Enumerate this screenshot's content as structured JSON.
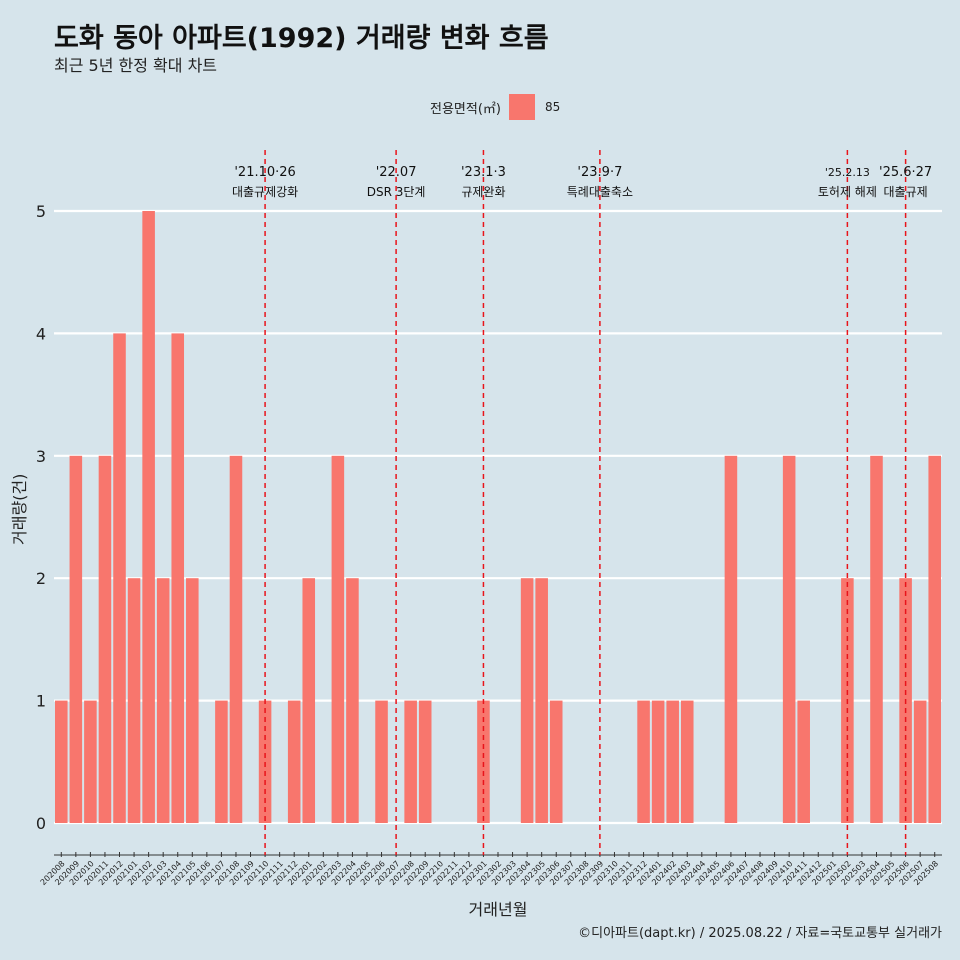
{
  "header": {
    "title": "도화 동아 아파트(1992) 거래량 변화 흐름",
    "subtitle": "최근 5년 한정 확대 차트"
  },
  "legend": {
    "title": "전용면적(㎡)",
    "items": [
      {
        "label": "85",
        "color": "#f8766d"
      }
    ]
  },
  "caption": "©디아파트(dapt.kr) / 2025.08.22 / 자료=국토교통부 실거래가",
  "chart_data": {
    "type": "bar",
    "title": "도화 동아 아파트(1992) 거래량 변화 흐름",
    "subtitle": "최근 5년 한정 확대 차트",
    "xlabel": "거래년월",
    "ylabel": "거래량(건)",
    "ylim": [
      0,
      5
    ],
    "yticks": [
      0,
      1,
      2,
      3,
      4,
      5
    ],
    "grid": true,
    "legend_position": "top",
    "categories": [
      "202008",
      "202009",
      "202010",
      "202011",
      "202012",
      "202101",
      "202102",
      "202103",
      "202104",
      "202105",
      "202106",
      "202107",
      "202108",
      "202109",
      "202110",
      "202111",
      "202112",
      "202201",
      "202202",
      "202203",
      "202204",
      "202205",
      "202206",
      "202207",
      "202208",
      "202209",
      "202210",
      "202211",
      "202212",
      "202301",
      "202302",
      "202303",
      "202304",
      "202305",
      "202306",
      "202307",
      "202308",
      "202309",
      "202310",
      "202311",
      "202312",
      "202401",
      "202402",
      "202403",
      "202404",
      "202405",
      "202406",
      "202407",
      "202408",
      "202409",
      "202410",
      "202411",
      "202412",
      "202501",
      "202502",
      "202503",
      "202504",
      "202505",
      "202506",
      "202507",
      "202508"
    ],
    "series": [
      {
        "name": "85",
        "color": "#f8766d",
        "values": [
          1,
          3,
          1,
          3,
          4,
          2,
          5,
          2,
          4,
          2,
          0,
          1,
          3,
          0,
          1,
          0,
          1,
          2,
          0,
          3,
          2,
          0,
          1,
          0,
          1,
          1,
          0,
          0,
          0,
          1,
          0,
          0,
          2,
          2,
          1,
          0,
          0,
          0,
          0,
          0,
          1,
          1,
          1,
          1,
          0,
          0,
          3,
          0,
          0,
          0,
          3,
          1,
          0,
          0,
          2,
          0,
          3,
          0,
          2,
          1,
          3
        ]
      }
    ],
    "annotations": [
      {
        "at": "202110",
        "line1": "'21.10·26",
        "line2": "대출규제강화"
      },
      {
        "at": "202207",
        "line1": "'22.07",
        "line2": "DSR 3단계"
      },
      {
        "at": "202301",
        "line1": "'23.1·3",
        "line2": "규제완화"
      },
      {
        "at": "202309",
        "line1": "'23.9·7",
        "line2": "특례대출축소"
      },
      {
        "at": "202502",
        "line1": "'25.2.13",
        "line2": "토허제 해제"
      },
      {
        "at": "202506",
        "line1": "'25.6·27",
        "line2": "대출규제"
      }
    ]
  }
}
